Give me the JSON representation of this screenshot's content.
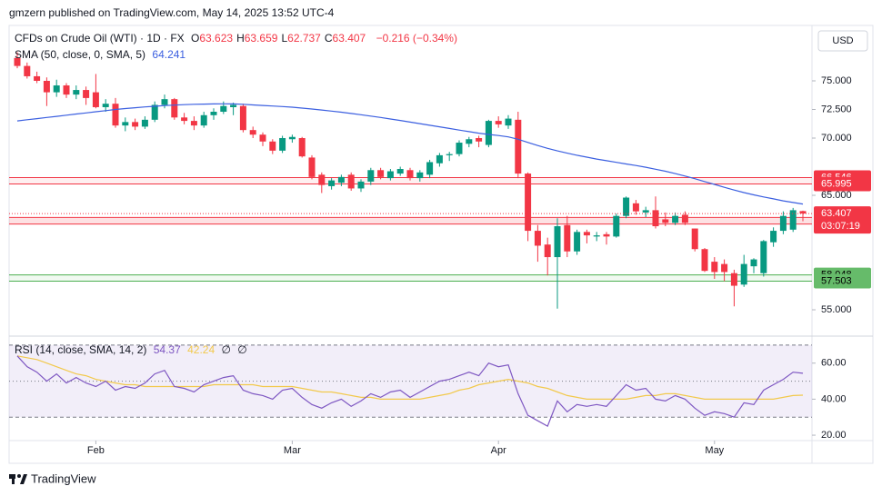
{
  "header": {
    "text": "gmzern published on TradingView.com, May 14, 2025 13:52 UTC-4"
  },
  "footer": {
    "logo": "TradingView"
  },
  "currency": "USD",
  "chart_data": [
    {
      "type": "candlestick",
      "symbol": "CFDs on Crude Oil (WTI) · 1D · FX",
      "legend_keys": [
        "O",
        "H",
        "L",
        "C"
      ],
      "change": "−0.216 (−0.34%)",
      "categories": [
        null,
        null,
        null,
        null,
        null,
        null,
        null,
        null,
        "Feb",
        null,
        null,
        null,
        null,
        null,
        null,
        null,
        null,
        null,
        null,
        null,
        null,
        null,
        null,
        null,
        null,
        null,
        null,
        null,
        "Mar",
        null,
        null,
        null,
        null,
        null,
        null,
        null,
        null,
        null,
        null,
        null,
        null,
        null,
        null,
        null,
        null,
        null,
        null,
        null,
        null,
        "Apr",
        null,
        null,
        null,
        null,
        null,
        null,
        null,
        null,
        null,
        null,
        null,
        null,
        null,
        null,
        null,
        null,
        null,
        null,
        null,
        null,
        null,
        "May",
        null,
        null,
        null,
        null,
        null,
        null,
        null,
        null,
        null
      ],
      "open": [
        77.0,
        76.3,
        75.4,
        75.0,
        74.0,
        74.6,
        73.8,
        74.2,
        74.0,
        72.7,
        73.0,
        71.1,
        71.4,
        71.0,
        71.6,
        72.9,
        73.4,
        71.8,
        71.5,
        71.1,
        72.0,
        72.3,
        72.7,
        72.8,
        70.7,
        70.3,
        69.7,
        68.9,
        69.9,
        70.0,
        68.3,
        66.8,
        65.8,
        66.1,
        66.8,
        65.6,
        66.2,
        67.2,
        66.5,
        66.9,
        67.2,
        66.5,
        66.8,
        67.8,
        68.5,
        68.6,
        69.5,
        70.0,
        69.4,
        71.5,
        71.1,
        71.6,
        66.9,
        61.9,
        60.7,
        59.6,
        62.4,
        60.1,
        61.8,
        61.4,
        61.6,
        61.4,
        63.2,
        64.3,
        63.5,
        63.7,
        62.9,
        62.6,
        63.3,
        62.1,
        60.3,
        59.2,
        59.0,
        58.2,
        57.2,
        58.8,
        58.2,
        60.9,
        61.9,
        62.0,
        63.623
      ],
      "high": [
        77.5,
        76.6,
        75.8,
        75.3,
        75.1,
        74.8,
        74.6,
        74.5,
        75.6,
        73.4,
        73.5,
        71.8,
        71.7,
        71.9,
        73.2,
        73.8,
        73.5,
        72.2,
        71.9,
        72.3,
        72.6,
        73.2,
        73.1,
        73.0,
        71.0,
        70.5,
        69.9,
        70.2,
        70.3,
        70.1,
        68.5,
        67.0,
        66.5,
        66.8,
        67.0,
        66.4,
        67.4,
        67.4,
        67.3,
        67.5,
        67.4,
        67.2,
        68.1,
        68.7,
        68.8,
        69.8,
        70.1,
        70.2,
        71.6,
        71.9,
        72.0,
        72.3,
        67.0,
        62.4,
        61.3,
        63.0,
        63.2,
        62.0,
        62.0,
        61.8,
        61.8,
        63.4,
        64.9,
        64.6,
        64.0,
        64.9,
        63.5,
        63.5,
        63.6,
        62.1,
        60.4,
        59.6,
        59.4,
        58.5,
        59.8,
        59.5,
        61.1,
        62.2,
        63.6,
        63.9,
        63.659
      ],
      "low": [
        76.1,
        75.2,
        74.8,
        72.8,
        73.6,
        73.5,
        73.4,
        72.9,
        72.6,
        72.3,
        70.9,
        70.6,
        70.7,
        70.8,
        71.4,
        72.6,
        71.6,
        71.2,
        70.7,
        70.9,
        71.6,
        72.1,
        72.0,
        70.5,
        70.0,
        69.3,
        68.6,
        68.7,
        69.6,
        68.3,
        66.4,
        65.2,
        65.5,
        65.8,
        65.4,
        65.3,
        65.9,
        66.4,
        66.3,
        66.7,
        66.3,
        66.2,
        66.5,
        67.5,
        68.0,
        68.4,
        69.2,
        69.2,
        69.2,
        70.9,
        70.8,
        66.5,
        61.0,
        59.2,
        58.0,
        55.1,
        59.6,
        59.8,
        60.8,
        61.0,
        60.7,
        61.3,
        63.0,
        63.3,
        63.1,
        62.1,
        62.3,
        62.4,
        62.4,
        60.1,
        58.3,
        57.7,
        57.5,
        55.3,
        57.0,
        58.2,
        57.9,
        60.5,
        61.6,
        61.8,
        62.737
      ],
      "close": [
        76.3,
        75.4,
        75.0,
        74.0,
        74.6,
        73.8,
        74.2,
        73.5,
        72.7,
        73.0,
        71.1,
        71.4,
        71.0,
        71.6,
        72.9,
        73.4,
        71.8,
        71.5,
        71.1,
        72.0,
        72.3,
        72.8,
        72.9,
        70.7,
        70.3,
        69.7,
        68.9,
        70.0,
        70.1,
        68.4,
        66.6,
        65.9,
        66.3,
        66.6,
        65.6,
        66.2,
        67.2,
        66.6,
        67.1,
        67.3,
        66.5,
        67.0,
        67.9,
        68.5,
        68.6,
        69.6,
        69.9,
        69.7,
        71.5,
        71.2,
        71.7,
        66.9,
        61.9,
        60.6,
        59.6,
        62.3,
        60.1,
        61.8,
        61.5,
        61.5,
        61.4,
        63.2,
        64.8,
        63.6,
        63.7,
        62.3,
        62.6,
        63.2,
        62.6,
        60.3,
        58.4,
        58.3,
        58.3,
        57.1,
        59.0,
        59.4,
        61.0,
        61.9,
        63.2,
        63.7,
        63.407
      ],
      "up_color": "#089981",
      "down_color": "#f23645",
      "series": [
        {
          "name": "SMA (50, close, 0, SMA, 5)",
          "color": "#3b5fe0",
          "values": [
            71.5,
            71.6,
            71.7,
            71.8,
            71.9,
            72.0,
            72.1,
            72.2,
            72.3,
            72.4,
            72.5,
            72.58,
            72.65,
            72.72,
            72.78,
            72.84,
            72.88,
            72.92,
            72.95,
            72.97,
            72.98,
            72.99,
            72.98,
            72.95,
            72.9,
            72.85,
            72.8,
            72.75,
            72.7,
            72.62,
            72.54,
            72.45,
            72.36,
            72.26,
            72.15,
            72.04,
            71.92,
            71.8,
            71.67,
            71.54,
            71.4,
            71.26,
            71.12,
            70.98,
            70.84,
            70.7,
            70.56,
            70.43,
            70.32,
            70.22,
            70.1,
            69.9,
            69.62,
            69.35,
            69.1,
            68.88,
            68.68,
            68.5,
            68.33,
            68.17,
            68.02,
            67.88,
            67.74,
            67.6,
            67.45,
            67.28,
            67.1,
            66.9,
            66.68,
            66.45,
            66.2,
            65.95,
            65.7,
            65.46,
            65.24,
            65.04,
            64.86,
            64.69,
            64.52,
            64.37,
            64.241
          ]
        }
      ],
      "ylim": [
        52.7,
        79.84
      ],
      "yticks": [
        {
          "value": 55,
          "label": "55.000"
        },
        {
          "value": 65,
          "label": "65.000"
        },
        {
          "value": 70,
          "label": "70.000"
        },
        {
          "value": 72.5,
          "label": "72.500"
        },
        {
          "value": 75,
          "label": "75.000"
        }
      ],
      "zones": [
        {
          "levels": [
            66.546,
            65.995
          ],
          "color": "#f23645",
          "fill": "rgba(242,54,69,0.08)",
          "label_color": "#f23645",
          "text_color": "#ffffff"
        },
        {
          "levels": [
            63.067,
            62.493
          ],
          "color": "#f23645",
          "fill": "rgba(242,54,69,0.15)",
          "label_color": "#f7828a",
          "text_color": "#ffffff"
        },
        {
          "levels": [
            58.048,
            57.503
          ],
          "color": "#4caf50",
          "fill": "rgba(76,175,80,0.08)",
          "label_color": "#66bb6a",
          "text_color": "#000000"
        }
      ],
      "countdown": "03:07:19"
    },
    {
      "type": "line",
      "title": "RSI (14, close, SMA, 14, 2)",
      "legend_extra": [
        "∅",
        "∅"
      ],
      "series": [
        {
          "color": "#7e57c2",
          "values": [
            64,
            58,
            55,
            50,
            54,
            49,
            52,
            49,
            47,
            50,
            45,
            47,
            46,
            49,
            54,
            56,
            47,
            46,
            44,
            48,
            50,
            52,
            53,
            45,
            43,
            42,
            40,
            45,
            46,
            41,
            37,
            35,
            38,
            40,
            36,
            39,
            43,
            41,
            44,
            45,
            41,
            44,
            47,
            50,
            51,
            53,
            55,
            53,
            60,
            58,
            59,
            43,
            31,
            28,
            25,
            39,
            33,
            37,
            36,
            37,
            36,
            42,
            48,
            45,
            46,
            40,
            39,
            42,
            40,
            35,
            31,
            33,
            32,
            30,
            38,
            37,
            45,
            48,
            51,
            55,
            54.37
          ]
        },
        {
          "color": "#f2c94c",
          "values": [
            64,
            63,
            62,
            60,
            58,
            56,
            54,
            53,
            51,
            50,
            49,
            48,
            48,
            47,
            47,
            47,
            47,
            47,
            47,
            47,
            48,
            48,
            48,
            48,
            48,
            47,
            47,
            47,
            47,
            46,
            45,
            44,
            44,
            43,
            42,
            41,
            41,
            40,
            40,
            40,
            40,
            40,
            41,
            42,
            43,
            45,
            46,
            48,
            49,
            50,
            51,
            50,
            49,
            47,
            46,
            44,
            42,
            41,
            40,
            40,
            40,
            40,
            40,
            41,
            42,
            42,
            43,
            43,
            42,
            41,
            40,
            40,
            40,
            40,
            40,
            40,
            40,
            40,
            41,
            42,
            42.24
          ]
        }
      ],
      "bands": {
        "upper": 70,
        "middle": 50,
        "lower": 30,
        "fill": "rgba(126,87,194,0.1)"
      },
      "ylim": [
        17,
        75
      ],
      "yticks": [
        {
          "value": 20,
          "label": "20.00"
        },
        {
          "value": 40,
          "label": "40.00"
        },
        {
          "value": 60,
          "label": "60.00"
        }
      ]
    }
  ]
}
